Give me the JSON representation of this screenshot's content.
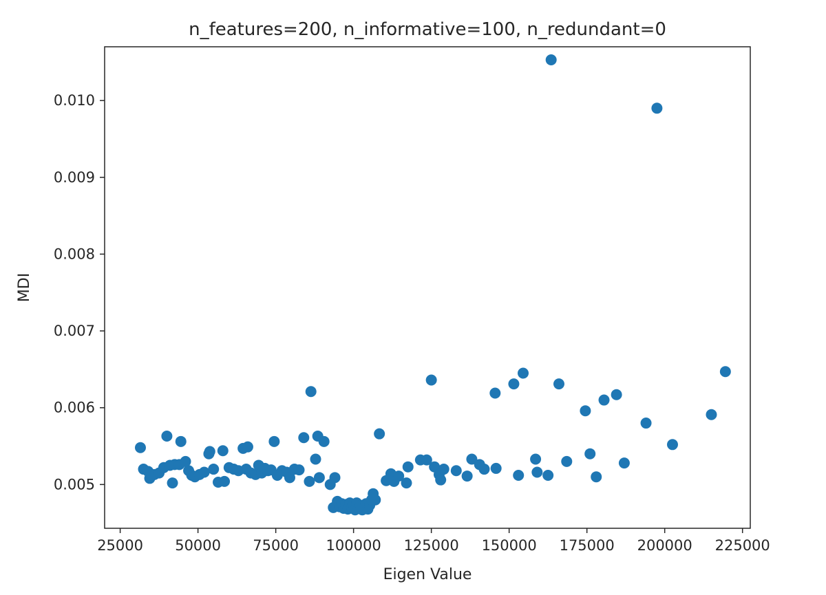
{
  "chart_data": {
    "type": "scatter",
    "title": "n_features=200, n_informative=100, n_redundant=0",
    "xlabel": "Eigen Value",
    "ylabel": "MDI",
    "xlim": [
      20000,
      227500
    ],
    "ylim": [
      0.00443,
      0.0107
    ],
    "xticks": [
      25000,
      50000,
      75000,
      100000,
      125000,
      150000,
      175000,
      200000,
      225000
    ],
    "xtick_labels": [
      "25000",
      "50000",
      "75000",
      "100000",
      "125000",
      "150000",
      "175000",
      "200000",
      "225000"
    ],
    "yticks": [
      0.005,
      0.006,
      0.007,
      0.008,
      0.009,
      0.01
    ],
    "ytick_labels": [
      "0.005",
      "0.006",
      "0.007",
      "0.008",
      "0.009",
      "0.010"
    ],
    "grid": false,
    "marker_color": "#1f77b4",
    "series": [
      {
        "points": [
          [
            31500,
            0.00548
          ],
          [
            32500,
            0.0052
          ],
          [
            34000,
            0.00517
          ],
          [
            34500,
            0.00508
          ],
          [
            36000,
            0.00513
          ],
          [
            37500,
            0.00515
          ],
          [
            39000,
            0.00522
          ],
          [
            40000,
            0.00563
          ],
          [
            41000,
            0.00525
          ],
          [
            41800,
            0.00502
          ],
          [
            42500,
            0.00526
          ],
          [
            44000,
            0.00526
          ],
          [
            44500,
            0.00556
          ],
          [
            46000,
            0.0053
          ],
          [
            47000,
            0.00518
          ],
          [
            48000,
            0.00512
          ],
          [
            49000,
            0.0051
          ],
          [
            50500,
            0.00513
          ],
          [
            52000,
            0.00516
          ],
          [
            53500,
            0.0054
          ],
          [
            53800,
            0.00543
          ],
          [
            55000,
            0.0052
          ],
          [
            56500,
            0.00503
          ],
          [
            58000,
            0.00544
          ],
          [
            58500,
            0.00504
          ],
          [
            60000,
            0.00522
          ],
          [
            61500,
            0.0052
          ],
          [
            63000,
            0.00518
          ],
          [
            64500,
            0.00547
          ],
          [
            65500,
            0.0052
          ],
          [
            66000,
            0.00549
          ],
          [
            67000,
            0.00515
          ],
          [
            68500,
            0.00513
          ],
          [
            69500,
            0.00525
          ],
          [
            70500,
            0.00515
          ],
          [
            71500,
            0.00521
          ],
          [
            72500,
            0.00518
          ],
          [
            73500,
            0.00519
          ],
          [
            74500,
            0.00556
          ],
          [
            75500,
            0.00512
          ],
          [
            77000,
            0.00518
          ],
          [
            78500,
            0.00516
          ],
          [
            79500,
            0.00509
          ],
          [
            81000,
            0.0052
          ],
          [
            82500,
            0.00519
          ],
          [
            84000,
            0.00561
          ],
          [
            85800,
            0.00504
          ],
          [
            86300,
            0.00621
          ],
          [
            87800,
            0.00533
          ],
          [
            88500,
            0.00563
          ],
          [
            89000,
            0.00509
          ],
          [
            90500,
            0.00556
          ],
          [
            92500,
            0.005
          ],
          [
            93500,
            0.0047
          ],
          [
            94000,
            0.00509
          ],
          [
            94800,
            0.00478
          ],
          [
            95500,
            0.00471
          ],
          [
            96200,
            0.00475
          ],
          [
            96800,
            0.00469
          ],
          [
            97500,
            0.00474
          ],
          [
            98200,
            0.00468
          ],
          [
            98800,
            0.00476
          ],
          [
            99400,
            0.0047
          ],
          [
            100000,
            0.00474
          ],
          [
            100500,
            0.00467
          ],
          [
            101000,
            0.00476
          ],
          [
            101600,
            0.00469
          ],
          [
            102200,
            0.00473
          ],
          [
            102800,
            0.00467
          ],
          [
            103400,
            0.00471
          ],
          [
            104000,
            0.00475
          ],
          [
            104600,
            0.00468
          ],
          [
            105200,
            0.00473
          ],
          [
            105800,
            0.0048
          ],
          [
            106300,
            0.00488
          ],
          [
            107000,
            0.0048
          ],
          [
            108300,
            0.00566
          ],
          [
            110500,
            0.00505
          ],
          [
            112000,
            0.00514
          ],
          [
            113000,
            0.00504
          ],
          [
            114500,
            0.00511
          ],
          [
            117000,
            0.00502
          ],
          [
            117500,
            0.00523
          ],
          [
            121500,
            0.00532
          ],
          [
            123500,
            0.00532
          ],
          [
            125000,
            0.00636
          ],
          [
            126000,
            0.00523
          ],
          [
            127500,
            0.00513
          ],
          [
            128000,
            0.00506
          ],
          [
            129000,
            0.0052
          ],
          [
            133000,
            0.00518
          ],
          [
            136500,
            0.00511
          ],
          [
            138000,
            0.00533
          ],
          [
            140500,
            0.00526
          ],
          [
            142000,
            0.0052
          ],
          [
            145500,
            0.00619
          ],
          [
            145800,
            0.00521
          ],
          [
            151500,
            0.00631
          ],
          [
            153000,
            0.00512
          ],
          [
            154500,
            0.00645
          ],
          [
            158500,
            0.00533
          ],
          [
            159000,
            0.00516
          ],
          [
            162500,
            0.00512
          ],
          [
            163500,
            0.01053
          ],
          [
            166000,
            0.00631
          ],
          [
            168500,
            0.0053
          ],
          [
            174500,
            0.00596
          ],
          [
            176000,
            0.0054
          ],
          [
            178000,
            0.0051
          ],
          [
            180500,
            0.0061
          ],
          [
            184500,
            0.00617
          ],
          [
            187000,
            0.00528
          ],
          [
            194000,
            0.0058
          ],
          [
            197500,
            0.0099
          ],
          [
            202500,
            0.00552
          ],
          [
            215000,
            0.00591
          ],
          [
            219500,
            0.00647
          ]
        ]
      }
    ]
  }
}
